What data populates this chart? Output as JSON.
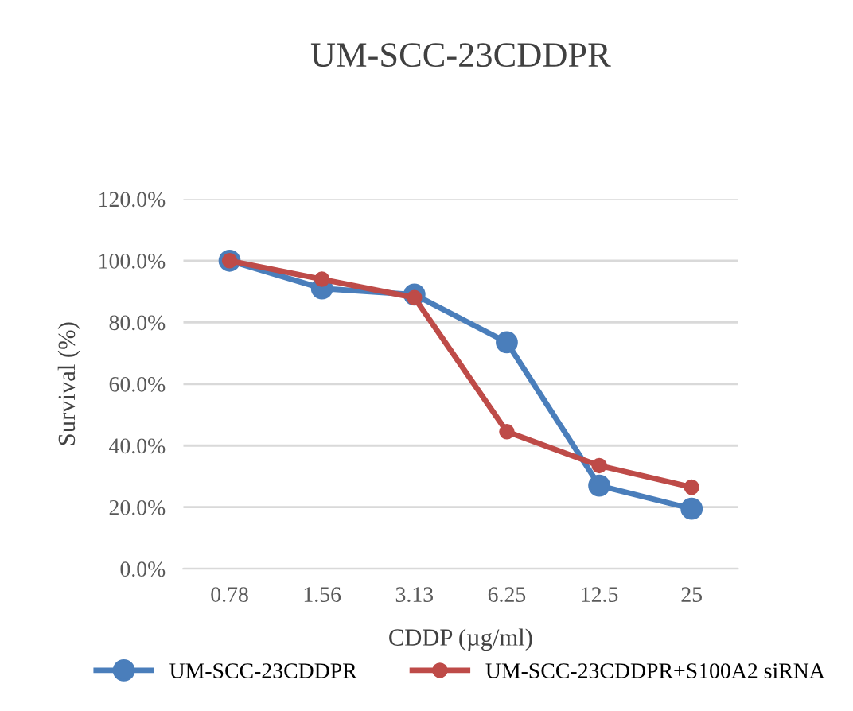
{
  "chart_data": {
    "type": "line",
    "title": "UM-SCC-23CDDPR",
    "xlabel": "CDDP (µg/ml)",
    "ylabel": "Survival (%)",
    "categories": [
      "0.78",
      "1.56",
      "3.13",
      "6.25",
      "12.5",
      "25"
    ],
    "series": [
      {
        "name": "UM-SCC-23CDDPR",
        "color": "#4a7ebb",
        "values": [
          100,
          91,
          89,
          73.5,
          27,
          19.5
        ]
      },
      {
        "name": "UM-SCC-23CDDPR+S100A2 siRNA",
        "color": "#be4b48",
        "values": [
          100,
          94,
          88,
          44.5,
          33.5,
          26.5
        ]
      }
    ],
    "ylim": [
      0,
      120
    ],
    "yticks": [
      {
        "value": 0,
        "label": "0.0%"
      },
      {
        "value": 20,
        "label": "20.0%"
      },
      {
        "value": 40,
        "label": "40.0%"
      },
      {
        "value": 60,
        "label": "60.0%"
      },
      {
        "value": 80,
        "label": "80.0%"
      },
      {
        "value": 100,
        "label": "100.0%"
      },
      {
        "value": 120,
        "label": "120.0%"
      }
    ],
    "grid": "y",
    "legend": "bottom",
    "marker": "circle",
    "line_style": "solid"
  }
}
